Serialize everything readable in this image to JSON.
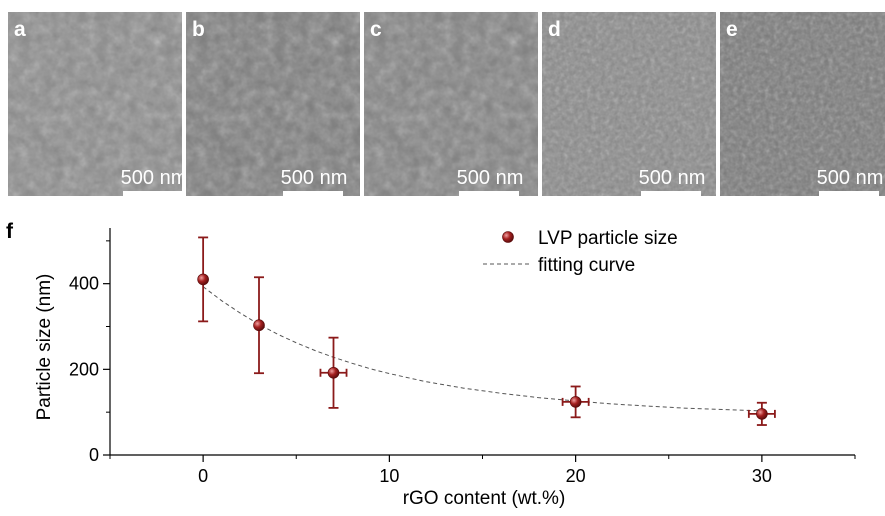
{
  "sem_panels": [
    {
      "letter": "a",
      "scalebar": "500 nm",
      "tone": "#8c8c8c"
    },
    {
      "letter": "b",
      "scalebar": "500 nm",
      "tone": "#7d7d7d"
    },
    {
      "letter": "c",
      "scalebar": "500 nm",
      "tone": "#828282"
    },
    {
      "letter": "d",
      "scalebar": "500 nm",
      "tone": "#8a8a8a"
    },
    {
      "letter": "e",
      "scalebar": "500 nm",
      "tone": "#7a7a7a"
    }
  ],
  "chart_data": {
    "type": "scatter",
    "panel_label": "f",
    "xlabel": "rGO content (wt.%)",
    "ylabel": "Particle size (nm)",
    "xlim": [
      -5,
      35
    ],
    "ylim": [
      0,
      530
    ],
    "x_ticks": [
      0,
      10,
      20,
      30
    ],
    "y_ticks": [
      0,
      200,
      400
    ],
    "grid": false,
    "legend_position": "top-right",
    "series": [
      {
        "name": "LVP particle size",
        "color": "#8b1a1a",
        "points": [
          {
            "x": 0,
            "y": 410,
            "yerr": 98,
            "xerr": 0
          },
          {
            "x": 3,
            "y": 303,
            "yerr": 112,
            "xerr": 0
          },
          {
            "x": 7,
            "y": 192,
            "yerr": 82,
            "xerr": 0.7
          },
          {
            "x": 20,
            "y": 124,
            "yerr": 36,
            "xerr": 0.7
          },
          {
            "x": 30,
            "y": 96,
            "yerr": 26,
            "xerr": 0.7
          }
        ]
      },
      {
        "name": "fitting curve",
        "style": "dashed",
        "color": "#555555",
        "x": [
          0,
          1,
          2,
          3,
          4,
          5,
          6,
          7,
          8,
          9,
          10,
          12,
          14,
          16,
          18,
          20,
          22,
          24,
          26,
          28,
          30
        ],
        "y": [
          393,
          360,
          331,
          305,
          282,
          262,
          244,
          228,
          214,
          201,
          190,
          171,
          156,
          144,
          134,
          126,
          119,
          114,
          109,
          106,
          103
        ]
      }
    ]
  }
}
